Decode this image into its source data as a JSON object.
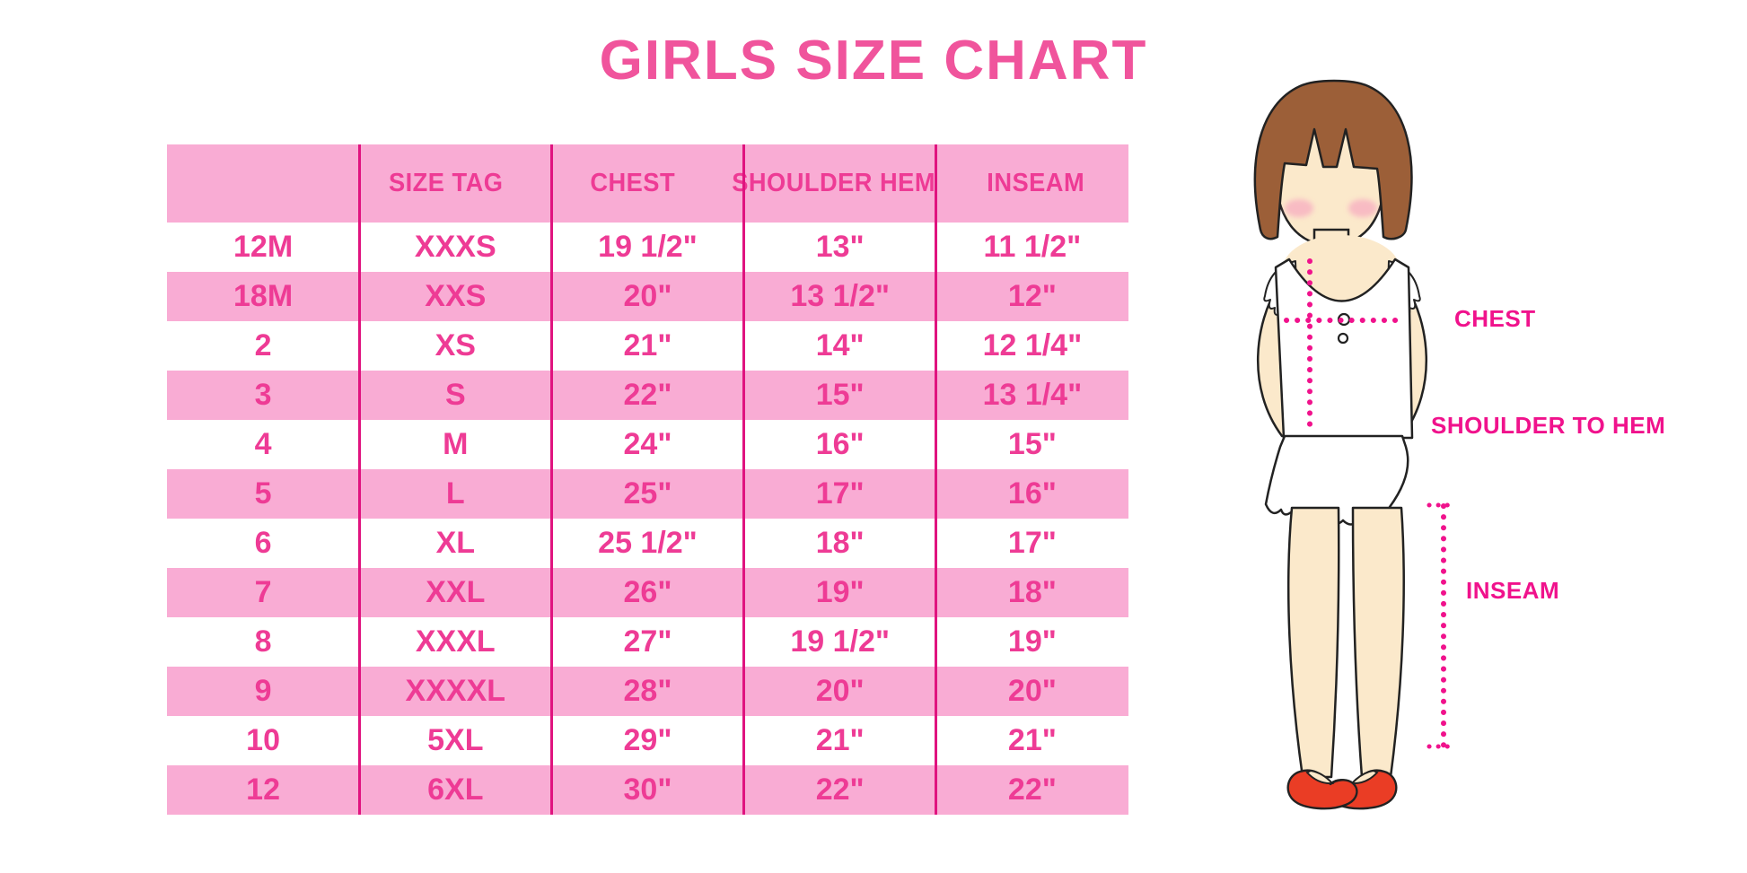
{
  "title": "GIRLS SIZE CHART",
  "chart_data": {
    "type": "table",
    "title": "GIRLS SIZE CHART",
    "columns": [
      "",
      "SIZE TAG",
      "CHEST",
      "SHOULDER HEM",
      "INSEAM"
    ],
    "rows": [
      [
        "12M",
        "XXXS",
        "19 1/2\"",
        "13\"",
        "11 1/2\""
      ],
      [
        "18M",
        "XXS",
        "20\"",
        "13 1/2\"",
        "12\""
      ],
      [
        "2",
        "XS",
        "21\"",
        "14\"",
        "12 1/4\""
      ],
      [
        "3",
        "S",
        "22\"",
        "15\"",
        "13 1/4\""
      ],
      [
        "4",
        "M",
        "24\"",
        "16\"",
        "15\""
      ],
      [
        "5",
        "L",
        "25\"",
        "17\"",
        "16\""
      ],
      [
        "6",
        "XL",
        "25 1/2\"",
        "18\"",
        "17\""
      ],
      [
        "7",
        "XXL",
        "26\"",
        "19\"",
        "18\""
      ],
      [
        "8",
        "XXXL",
        "27\"",
        "19 1/2\"",
        "19\""
      ],
      [
        "9",
        "XXXXL",
        "28\"",
        "20\"",
        "20\""
      ],
      [
        "10",
        "5XL",
        "29\"",
        "21\"",
        "21\""
      ],
      [
        "12",
        "6XL",
        "30\"",
        "22\"",
        "22\""
      ]
    ],
    "layout": {
      "stripes": "alternating white/pink, header pink",
      "grid": "vertical magenta dividers only"
    }
  },
  "figure": {
    "labels": {
      "chest": "CHEST",
      "shoulder_to_hem": "SHOULDER TO HEM",
      "inseam": "INSEAM"
    }
  },
  "colors": {
    "title_pink": "#F0549C",
    "table_text_pink": "#EE3B95",
    "stripe_pink": "#F9ACD4",
    "divider_magenta": "#E0137F",
    "label_magenta": "#F0128C",
    "dotted_line_magenta": "#F0128B",
    "skin": "#FBE9CB",
    "hair_brown": "#9C5F38",
    "shoe_red": "#EA3D25"
  }
}
